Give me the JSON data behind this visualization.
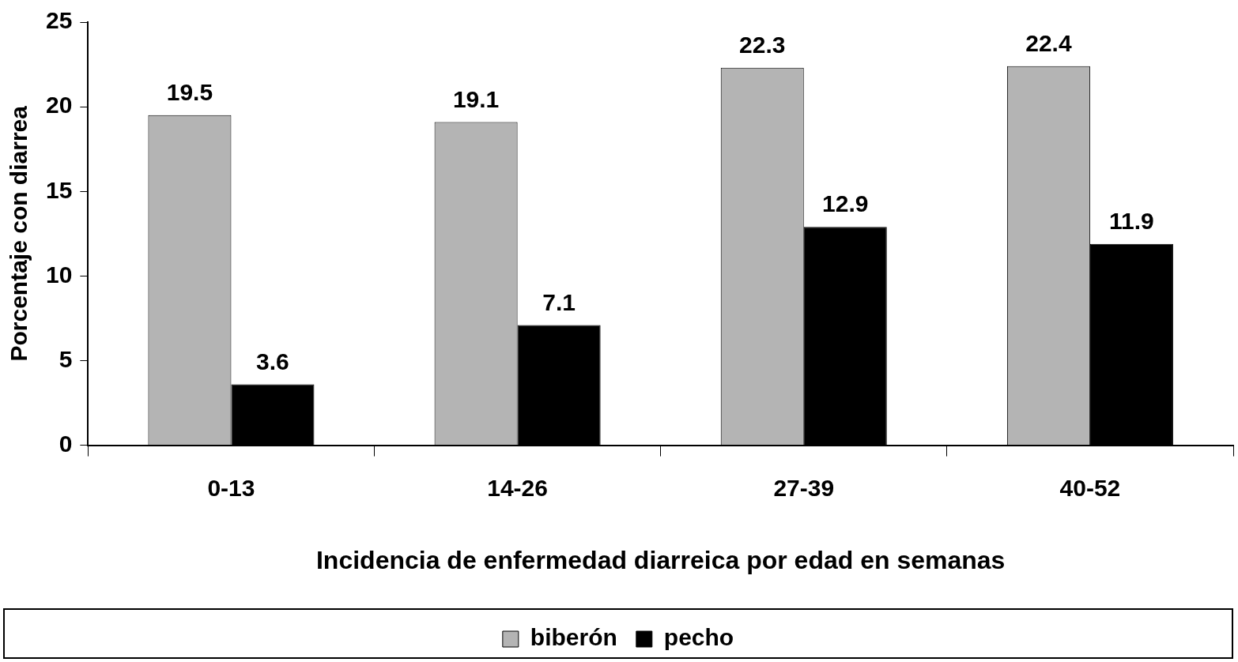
{
  "chart_data": {
    "type": "bar",
    "xlabel": "Incidencia de enfermedad diarreica por edad en semanas",
    "ylabel": "Porcentaje con diarrea",
    "categories": [
      "0-13",
      "14-26",
      "27-39",
      "40-52"
    ],
    "series": [
      {
        "name": "biberón",
        "color": "#b4b4b4",
        "values": [
          19.5,
          19.1,
          22.3,
          22.4
        ]
      },
      {
        "name": "pecho",
        "color": "#000000",
        "values": [
          3.6,
          7.1,
          12.9,
          11.9
        ]
      }
    ],
    "ylim": [
      0,
      25
    ],
    "yticks": [
      0,
      5,
      10,
      15,
      20,
      25
    ],
    "grid": false,
    "legend": "bottom",
    "data_labels": true
  }
}
